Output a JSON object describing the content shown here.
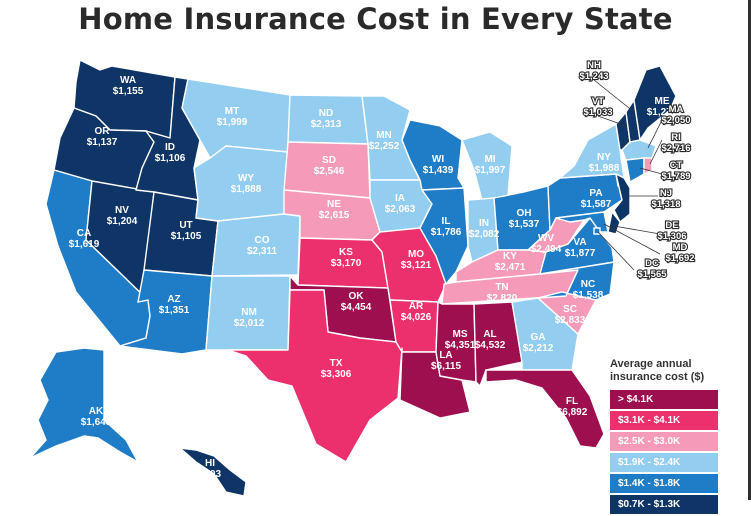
{
  "title": "Home Insurance Cost in Every State",
  "legend": {
    "title_line1": "Average annual",
    "title_line2": "insurance cost ($)",
    "items": [
      {
        "label": "> $4.1K",
        "color": "#9e0f4f"
      },
      {
        "label": "$3.1K - $4.1K",
        "color": "#ec2f6d"
      },
      {
        "label": "$2.5K - $3.0K",
        "color": "#f59bb9"
      },
      {
        "label": "$1.9K - $2.4K",
        "color": "#93cdf0"
      },
      {
        "label": "$1.4K - $1.8K",
        "color": "#1f7cc6"
      },
      {
        "label": "$0.7K - $1.3K",
        "color": "#0f3566"
      }
    ]
  },
  "states": [
    {
      "abbr": "WA",
      "value": "$1,155",
      "color": "#0f3566"
    },
    {
      "abbr": "OR",
      "value": "$1,137",
      "color": "#0f3566"
    },
    {
      "abbr": "CA",
      "value": "$1,619",
      "color": "#1f7cc6"
    },
    {
      "abbr": "ID",
      "value": "$1,106",
      "color": "#0f3566"
    },
    {
      "abbr": "NV",
      "value": "$1,204",
      "color": "#0f3566"
    },
    {
      "abbr": "UT",
      "value": "$1,105",
      "color": "#0f3566"
    },
    {
      "abbr": "AZ",
      "value": "$1,351",
      "color": "#1f7cc6"
    },
    {
      "abbr": "MT",
      "value": "$1,999",
      "color": "#93cdf0"
    },
    {
      "abbr": "WY",
      "value": "$1,888",
      "color": "#93cdf0"
    },
    {
      "abbr": "CO",
      "value": "$2,311",
      "color": "#93cdf0"
    },
    {
      "abbr": "NM",
      "value": "$2,012",
      "color": "#93cdf0"
    },
    {
      "abbr": "ND",
      "value": "$2,313",
      "color": "#93cdf0"
    },
    {
      "abbr": "SD",
      "value": "$2,546",
      "color": "#f59bb9"
    },
    {
      "abbr": "NE",
      "value": "$2,615",
      "color": "#f59bb9"
    },
    {
      "abbr": "KS",
      "value": "$3,170",
      "color": "#ec2f6d"
    },
    {
      "abbr": "OK",
      "value": "$4,454",
      "color": "#9e0f4f"
    },
    {
      "abbr": "TX",
      "value": "$3,306",
      "color": "#ec2f6d"
    },
    {
      "abbr": "MN",
      "value": "$2,252",
      "color": "#93cdf0"
    },
    {
      "abbr": "IA",
      "value": "$2,063",
      "color": "#93cdf0"
    },
    {
      "abbr": "MO",
      "value": "$3,121",
      "color": "#ec2f6d"
    },
    {
      "abbr": "AR",
      "value": "$4,026",
      "color": "#ec2f6d"
    },
    {
      "abbr": "LA",
      "value": "$6,115",
      "color": "#9e0f4f"
    },
    {
      "abbr": "WI",
      "value": "$1,439",
      "color": "#1f7cc6"
    },
    {
      "abbr": "IL",
      "value": "$1,786",
      "color": "#1f7cc6"
    },
    {
      "abbr": "MI",
      "value": "$1,997",
      "color": "#93cdf0"
    },
    {
      "abbr": "IN",
      "value": "$2,082",
      "color": "#93cdf0"
    },
    {
      "abbr": "OH",
      "value": "$1,537",
      "color": "#1f7cc6"
    },
    {
      "abbr": "KY",
      "value": "$2,471",
      "color": "#f59bb9"
    },
    {
      "abbr": "TN",
      "value": "$2,820",
      "color": "#f59bb9"
    },
    {
      "abbr": "MS",
      "value": "$4,351",
      "color": "#9e0f4f"
    },
    {
      "abbr": "AL",
      "value": "$4,532",
      "color": "#9e0f4f"
    },
    {
      "abbr": "GA",
      "value": "$2,212",
      "color": "#93cdf0"
    },
    {
      "abbr": "FL",
      "value": "$6,892",
      "color": "#9e0f4f"
    },
    {
      "abbr": "SC",
      "value": "$2,833",
      "color": "#f59bb9"
    },
    {
      "abbr": "NC",
      "value": "$1,538",
      "color": "#1f7cc6"
    },
    {
      "abbr": "VA",
      "value": "$1,877",
      "color": "#1f7cc6"
    },
    {
      "abbr": "WV",
      "value": "$2,494",
      "color": "#f59bb9"
    },
    {
      "abbr": "PA",
      "value": "$1,587",
      "color": "#1f7cc6"
    },
    {
      "abbr": "NY",
      "value": "$1,988",
      "color": "#93cdf0"
    },
    {
      "abbr": "ME",
      "value": "$1,276",
      "color": "#0f3566"
    },
    {
      "abbr": "NH",
      "value": "$1,243",
      "color": "#0f3566"
    },
    {
      "abbr": "VT",
      "value": "$1,033",
      "color": "#0f3566"
    },
    {
      "abbr": "MA",
      "value": "$2,050",
      "color": "#93cdf0"
    },
    {
      "abbr": "RI",
      "value": "$2,716",
      "color": "#f59bb9"
    },
    {
      "abbr": "CT",
      "value": "$1,789",
      "color": "#1f7cc6"
    },
    {
      "abbr": "NJ",
      "value": "$1,318",
      "color": "#0f3566"
    },
    {
      "abbr": "DE",
      "value": "$1,306",
      "color": "#0f3566"
    },
    {
      "abbr": "MD",
      "value": "$1,692",
      "color": "#1f7cc6"
    },
    {
      "abbr": "DC",
      "value": "$1,565",
      "color": "#1f7cc6"
    },
    {
      "abbr": "AK",
      "value": "$1,643",
      "color": "#1f7cc6"
    },
    {
      "abbr": "HI",
      "value": "$703",
      "color": "#0f3566"
    }
  ]
}
